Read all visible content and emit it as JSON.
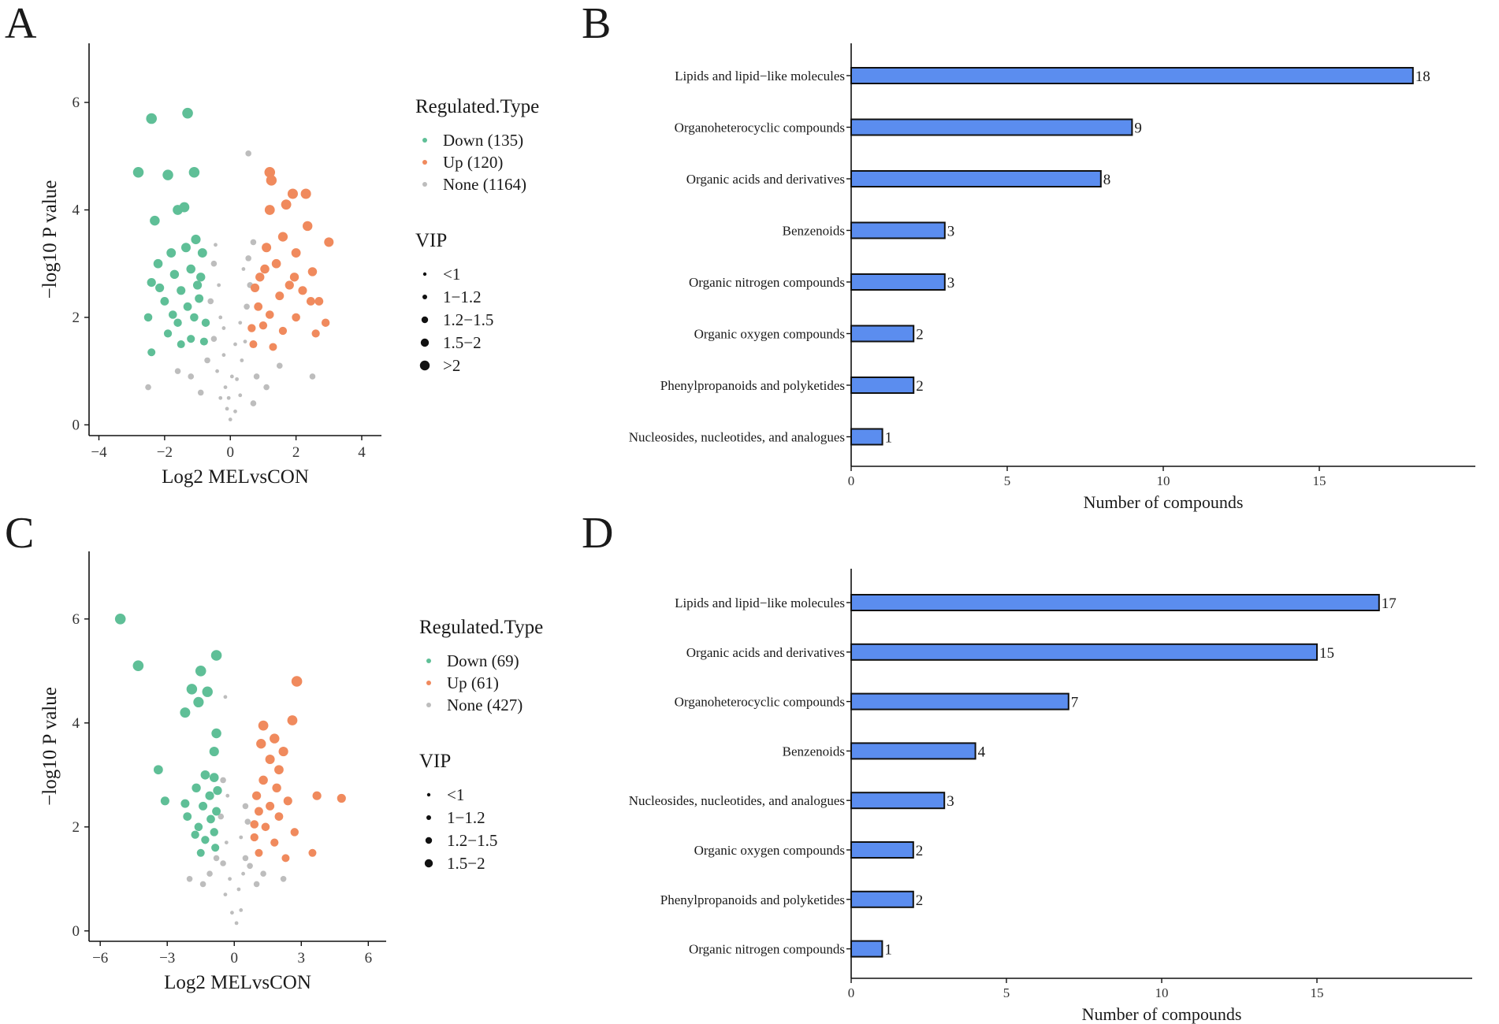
{
  "colors": {
    "down": "#5fbf97",
    "up": "#f08a5d",
    "none": "#bdbdbd",
    "bar_fill": "#5b8def",
    "bar_stroke": "#111111",
    "axis": "#111111"
  },
  "chart_data": [
    {
      "type": "scatter",
      "panel": "A",
      "xlabel": "Log2 MELvsCON",
      "ylabel": "−log10 P value",
      "xlim": [
        -4.3,
        4.6
      ],
      "ylim": [
        -0.2,
        7.1
      ],
      "xticks": [
        -4,
        -2,
        0,
        2,
        4
      ],
      "xtick_labels": [
        "−4",
        "−2",
        "0",
        "2",
        "4"
      ],
      "yticks": [
        0,
        2,
        4,
        6
      ],
      "ytick_labels": [
        "0",
        "2",
        "4",
        "6"
      ],
      "legend": {
        "type_title": "Regulated.Type",
        "type_entries": [
          {
            "label": "Down (135)",
            "group": "down"
          },
          {
            "label": "Up (120)",
            "group": "up"
          },
          {
            "label": "None (1164)",
            "group": "none"
          }
        ],
        "vip_title": "VIP",
        "vip_entries": [
          "<1",
          "1−1.2",
          "1.2−1.5",
          "1.5−2",
          ">2"
        ]
      },
      "points": {
        "down": [
          [
            -2.4,
            5.7
          ],
          [
            -1.3,
            5.8
          ],
          [
            -2.8,
            4.7
          ],
          [
            -1.9,
            4.65
          ],
          [
            -1.1,
            4.7
          ],
          [
            -1.6,
            4.0
          ],
          [
            -1.4,
            4.05
          ],
          [
            -2.3,
            3.8
          ],
          [
            -1.05,
            3.45
          ],
          [
            -1.8,
            3.2
          ],
          [
            -2.2,
            3.0
          ],
          [
            -1.2,
            2.9
          ],
          [
            -1.7,
            2.8
          ],
          [
            -2.4,
            2.65
          ],
          [
            -1.0,
            2.6
          ],
          [
            -1.5,
            2.5
          ],
          [
            -2.0,
            2.3
          ],
          [
            -1.3,
            2.2
          ],
          [
            -2.5,
            2.0
          ],
          [
            -1.1,
            2.0
          ],
          [
            -1.6,
            1.9
          ],
          [
            -1.9,
            1.7
          ],
          [
            -1.2,
            1.6
          ],
          [
            -1.5,
            1.5
          ],
          [
            -2.4,
            1.35
          ],
          [
            -0.8,
            1.55
          ],
          [
            -0.9,
            2.75
          ],
          [
            -0.85,
            3.2
          ],
          [
            -1.35,
            3.3
          ],
          [
            -0.75,
            1.9
          ],
          [
            -1.75,
            2.05
          ],
          [
            -2.15,
            2.55
          ],
          [
            -0.95,
            2.35
          ]
        ],
        "up": [
          [
            1.2,
            4.7
          ],
          [
            1.25,
            4.55
          ],
          [
            1.9,
            4.3
          ],
          [
            2.3,
            4.3
          ],
          [
            1.7,
            4.1
          ],
          [
            1.2,
            4.0
          ],
          [
            2.35,
            3.7
          ],
          [
            1.6,
            3.5
          ],
          [
            3.0,
            3.4
          ],
          [
            1.1,
            3.3
          ],
          [
            2.0,
            3.2
          ],
          [
            1.4,
            3.0
          ],
          [
            2.5,
            2.85
          ],
          [
            0.9,
            2.75
          ],
          [
            1.8,
            2.6
          ],
          [
            2.2,
            2.5
          ],
          [
            1.5,
            2.4
          ],
          [
            2.7,
            2.3
          ],
          [
            0.85,
            2.2
          ],
          [
            1.2,
            2.05
          ],
          [
            2.0,
            2.0
          ],
          [
            2.9,
            1.9
          ],
          [
            1.0,
            1.85
          ],
          [
            1.6,
            1.75
          ],
          [
            2.6,
            1.7
          ],
          [
            0.7,
            1.5
          ],
          [
            1.3,
            1.45
          ],
          [
            0.75,
            2.55
          ],
          [
            1.05,
            2.9
          ],
          [
            2.45,
            2.3
          ],
          [
            1.95,
            2.75
          ],
          [
            0.65,
            1.8
          ]
        ],
        "none": [
          [
            0.55,
            5.05
          ],
          [
            -0.45,
            3.35
          ],
          [
            -0.5,
            3.0
          ],
          [
            -0.35,
            2.6
          ],
          [
            -0.6,
            2.3
          ],
          [
            -0.3,
            2.0
          ],
          [
            -0.5,
            1.6
          ],
          [
            -0.2,
            1.3
          ],
          [
            -0.4,
            1.0
          ],
          [
            -0.15,
            0.7
          ],
          [
            -0.3,
            0.5
          ],
          [
            -0.1,
            0.3
          ],
          [
            0.0,
            0.1
          ],
          [
            0.15,
            0.25
          ],
          [
            0.3,
            0.55
          ],
          [
            0.2,
            0.85
          ],
          [
            0.35,
            1.2
          ],
          [
            0.45,
            1.55
          ],
          [
            0.3,
            1.9
          ],
          [
            0.5,
            2.2
          ],
          [
            0.6,
            2.6
          ],
          [
            0.4,
            2.9
          ],
          [
            0.55,
            3.1
          ],
          [
            0.7,
            3.4
          ],
          [
            -0.7,
            1.2
          ],
          [
            -1.2,
            0.9
          ],
          [
            -0.9,
            0.6
          ],
          [
            0.8,
            0.9
          ],
          [
            1.1,
            0.7
          ],
          [
            0.7,
            0.4
          ],
          [
            -1.6,
            1.0
          ],
          [
            1.5,
            1.1
          ],
          [
            2.5,
            0.9
          ],
          [
            -2.5,
            0.7
          ],
          [
            -0.2,
            1.8
          ],
          [
            0.15,
            1.5
          ],
          [
            -0.05,
            0.5
          ],
          [
            0.05,
            0.9
          ]
        ]
      }
    },
    {
      "type": "bar",
      "panel": "B",
      "orientation": "horizontal",
      "xlabel": "Number of compounds",
      "xlim": [
        0,
        20
      ],
      "xticks": [
        0,
        5,
        10,
        15
      ],
      "categories": [
        "Lipids and lipid−like molecules",
        "Organoheterocyclic compounds",
        "Organic acids and derivatives",
        "Benzenoids",
        "Organic nitrogen compounds",
        "Organic oxygen compounds",
        "Phenylpropanoids and polyketides",
        "Nucleosides, nucleotides, and analogues"
      ],
      "values": [
        18,
        9,
        8,
        3,
        3,
        2,
        2,
        1
      ]
    },
    {
      "type": "scatter",
      "panel": "C",
      "xlabel": "Log2 MELvsCON",
      "ylabel": "−log10 P value",
      "xlim": [
        -6.5,
        6.8
      ],
      "ylim": [
        -0.2,
        7.3
      ],
      "xticks": [
        -6,
        -3,
        0,
        3,
        6
      ],
      "xtick_labels": [
        "−6",
        "−3",
        "0",
        "3",
        "6"
      ],
      "yticks": [
        0,
        2,
        4,
        6
      ],
      "ytick_labels": [
        "0",
        "2",
        "4",
        "6"
      ],
      "legend": {
        "type_title": "Regulated.Type",
        "type_entries": [
          {
            "label": "Down (69)",
            "group": "down"
          },
          {
            "label": "Up (61)",
            "group": "up"
          },
          {
            "label": "None (427)",
            "group": "none"
          }
        ],
        "vip_title": "VIP",
        "vip_entries": [
          "<1",
          "1−1.2",
          "1.2−1.5",
          "1.5−2"
        ]
      },
      "points": {
        "down": [
          [
            -5.1,
            6.0
          ],
          [
            -4.3,
            5.1
          ],
          [
            -0.8,
            5.3
          ],
          [
            -1.5,
            5.0
          ],
          [
            -1.9,
            4.65
          ],
          [
            -1.2,
            4.6
          ],
          [
            -1.6,
            4.4
          ],
          [
            -2.2,
            4.2
          ],
          [
            -0.8,
            3.8
          ],
          [
            -0.9,
            3.45
          ],
          [
            -3.4,
            3.1
          ],
          [
            -1.3,
            3.0
          ],
          [
            -0.9,
            2.95
          ],
          [
            -1.7,
            2.75
          ],
          [
            -1.1,
            2.6
          ],
          [
            -3.1,
            2.5
          ],
          [
            -2.2,
            2.45
          ],
          [
            -1.4,
            2.4
          ],
          [
            -0.8,
            2.3
          ],
          [
            -2.1,
            2.2
          ],
          [
            -1.6,
            2.0
          ],
          [
            -0.9,
            1.9
          ],
          [
            -1.3,
            1.75
          ],
          [
            -0.85,
            1.6
          ],
          [
            -1.5,
            1.5
          ],
          [
            -0.75,
            2.7
          ],
          [
            -1.05,
            2.15
          ],
          [
            -1.75,
            1.85
          ]
        ],
        "up": [
          [
            2.8,
            4.8
          ],
          [
            2.6,
            4.05
          ],
          [
            1.3,
            3.95
          ],
          [
            1.8,
            3.7
          ],
          [
            1.2,
            3.6
          ],
          [
            2.2,
            3.45
          ],
          [
            1.6,
            3.3
          ],
          [
            2.0,
            3.1
          ],
          [
            1.3,
            2.9
          ],
          [
            3.7,
            2.6
          ],
          [
            4.8,
            2.55
          ],
          [
            1.0,
            2.6
          ],
          [
            2.4,
            2.5
          ],
          [
            1.6,
            2.4
          ],
          [
            1.1,
            2.3
          ],
          [
            2.0,
            2.2
          ],
          [
            1.4,
            2.0
          ],
          [
            2.7,
            1.9
          ],
          [
            0.9,
            1.8
          ],
          [
            1.8,
            1.7
          ],
          [
            3.5,
            1.5
          ],
          [
            1.1,
            1.5
          ],
          [
            2.3,
            1.4
          ],
          [
            0.9,
            2.05
          ],
          [
            1.9,
            2.75
          ]
        ],
        "none": [
          [
            -0.4,
            4.5
          ],
          [
            -0.5,
            2.9
          ],
          [
            -0.3,
            2.6
          ],
          [
            -0.6,
            2.2
          ],
          [
            -0.35,
            1.7
          ],
          [
            -0.5,
            1.3
          ],
          [
            -0.2,
            1.0
          ],
          [
            -0.4,
            0.7
          ],
          [
            -0.1,
            0.35
          ],
          [
            0.1,
            0.15
          ],
          [
            0.3,
            0.4
          ],
          [
            0.2,
            0.8
          ],
          [
            0.4,
            1.1
          ],
          [
            0.5,
            1.4
          ],
          [
            0.3,
            1.8
          ],
          [
            0.6,
            2.1
          ],
          [
            0.5,
            2.4
          ],
          [
            -1.1,
            1.1
          ],
          [
            -1.4,
            0.9
          ],
          [
            1.0,
            0.9
          ],
          [
            1.3,
            1.1
          ],
          [
            -2.0,
            1.0
          ],
          [
            2.2,
            1.0
          ],
          [
            0.7,
            1.25
          ],
          [
            -0.8,
            1.4
          ]
        ]
      }
    },
    {
      "type": "bar",
      "panel": "D",
      "orientation": "horizontal",
      "xlabel": "Number of compounds",
      "xlim": [
        0,
        20
      ],
      "xticks": [
        0,
        5,
        10,
        15
      ],
      "categories": [
        "Lipids and lipid−like molecules",
        "Organic acids and derivatives",
        "Organoheterocyclic compounds",
        "Benzenoids",
        "Nucleosides, nucleotides, and analogues",
        "Organic oxygen compounds",
        "Phenylpropanoids and polyketides",
        "Organic nitrogen compounds"
      ],
      "values": [
        17,
        15,
        7,
        4,
        3,
        2,
        2,
        1
      ]
    }
  ]
}
